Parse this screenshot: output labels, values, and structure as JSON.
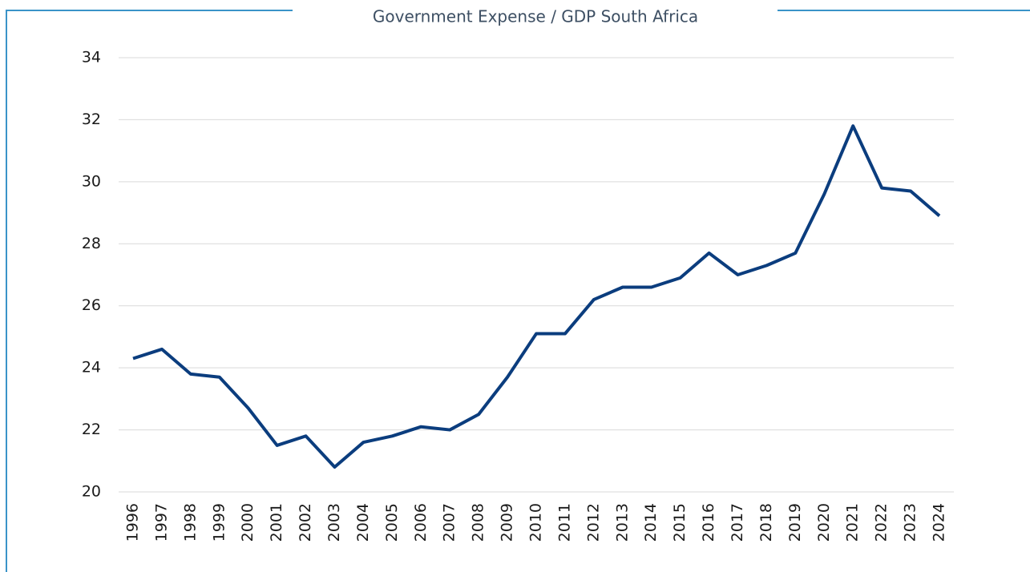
{
  "chart_data": {
    "type": "line",
    "title": "Government Expense / GDP South Africa",
    "categories": [
      "1996",
      "1997",
      "1998",
      "1999",
      "2000",
      "2001",
      "2002",
      "2003",
      "2004",
      "2005",
      "2006",
      "2007",
      "2008",
      "2009",
      "2010",
      "2011",
      "2012",
      "2013",
      "2014",
      "2015",
      "2016",
      "2017",
      "2018",
      "2019",
      "2020",
      "2021",
      "2022",
      "2023",
      "2024"
    ],
    "series": [
      {
        "name": "Government Expense / GDP",
        "color": "#0b3d7e",
        "values": [
          24.3,
          24.6,
          23.8,
          23.7,
          22.7,
          21.5,
          21.8,
          20.8,
          21.6,
          21.8,
          22.1,
          22.0,
          22.5,
          23.7,
          25.1,
          25.1,
          26.2,
          26.6,
          26.6,
          26.9,
          27.7,
          27.0,
          27.3,
          27.7,
          29.6,
          31.8,
          29.8,
          29.7,
          28.9
        ]
      }
    ],
    "ylim": [
      20,
      34
    ],
    "yticks": [
      20,
      22,
      24,
      26,
      28,
      30,
      32,
      34
    ],
    "grid": true
  }
}
